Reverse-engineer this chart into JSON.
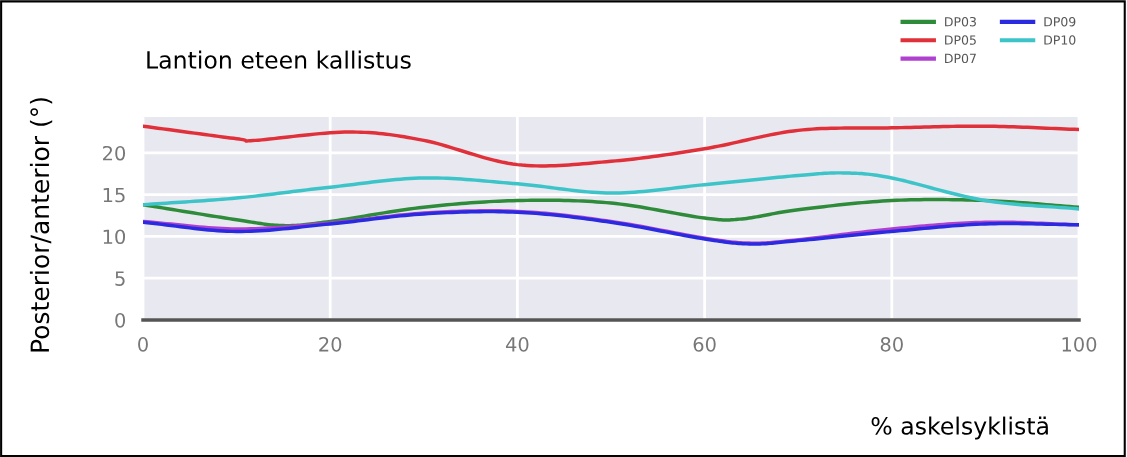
{
  "chart_data": {
    "type": "line",
    "title": "Lantion eteen kallistus",
    "xlabel": "% askelsyklistä",
    "ylabel": "Posterior/anterior (°)",
    "xlim": [
      0,
      100
    ],
    "xticks": [
      0,
      20,
      40,
      60,
      80,
      100
    ],
    "ylim": [
      0,
      24.3
    ],
    "yticks": [
      0,
      5,
      10,
      15,
      20
    ],
    "grid": true,
    "legend": "top right",
    "marker": "none",
    "line_style": "solid",
    "series": [
      {
        "name": "DP03",
        "color": "#2e8b3a",
        "x": [
          0,
          10,
          15,
          20,
          30,
          40,
          50,
          60,
          64,
          70,
          80,
          90,
          100
        ],
        "values": [
          13.8,
          12.0,
          11.3,
          11.8,
          13.5,
          14.3,
          14.0,
          12.2,
          12.1,
          13.2,
          14.3,
          14.3,
          13.5
        ]
      },
      {
        "name": "DP05",
        "color": "#e0303a",
        "x": [
          0,
          10,
          12,
          22,
          30,
          40,
          50,
          60,
          70,
          80,
          90,
          100
        ],
        "values": [
          23.2,
          21.7,
          21.5,
          22.5,
          21.5,
          18.6,
          19.0,
          20.5,
          22.7,
          23.0,
          23.2,
          22.8
        ]
      },
      {
        "name": "DP07",
        "color": "#b040d0",
        "x": [
          0,
          10,
          20,
          30,
          40,
          50,
          60,
          65,
          70,
          80,
          90,
          100
        ],
        "values": [
          11.8,
          10.9,
          11.6,
          12.8,
          13.0,
          11.8,
          9.8,
          9.2,
          9.6,
          10.9,
          11.7,
          11.4
        ]
      },
      {
        "name": "DP09",
        "color": "#2a2ae0",
        "x": [
          0,
          10,
          20,
          30,
          40,
          50,
          60,
          65,
          70,
          80,
          90,
          100
        ],
        "values": [
          11.7,
          10.6,
          11.5,
          12.7,
          12.9,
          11.7,
          9.7,
          9.1,
          9.5,
          10.6,
          11.5,
          11.4
        ]
      },
      {
        "name": "DP10",
        "color": "#3cc4c8",
        "x": [
          0,
          10,
          20,
          30,
          40,
          50,
          60,
          70,
          75,
          80,
          90,
          100
        ],
        "values": [
          13.8,
          14.6,
          15.9,
          17.0,
          16.3,
          15.2,
          16.2,
          17.3,
          17.6,
          17.0,
          14.3,
          13.3
        ]
      }
    ]
  }
}
